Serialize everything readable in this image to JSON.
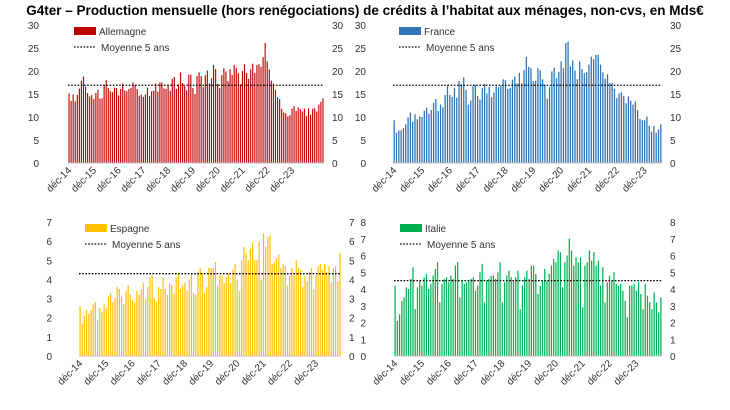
{
  "title": "G4ter – Production mensuelle (hors renégociations) de crédits à l’habitat aux ménages, non-cvs, en Mds€",
  "avg_label": "Moyenne 5 ans",
  "x_tick_labels": [
    "déc-14",
    "déc-15",
    "déc-16",
    "déc-17",
    "déc-18",
    "déc-19",
    "déc-20",
    "déc-21",
    "déc-22",
    "déc-23"
  ],
  "chart_data": [
    {
      "type": "bar",
      "name": "Allemagne",
      "color": "#C00000",
      "y_ticks": [
        0,
        5,
        10,
        15,
        20,
        25,
        30
      ],
      "ylim": [
        0,
        30
      ],
      "avg": 16.9,
      "values": [
        15.1,
        13.5,
        14.9,
        13.4,
        14.8,
        16.2,
        17.9,
        18.8,
        16.6,
        15.2,
        14.5,
        14.8,
        13.9,
        15.2,
        15.9,
        14.0,
        14.1,
        16.9,
        18.0,
        16.3,
        15.6,
        15.4,
        16.4,
        16.3,
        14.7,
        16.1,
        17.3,
        15.8,
        15.6,
        16.1,
        16.3,
        17.5,
        17.0,
        16.1,
        14.6,
        14.9,
        14.4,
        14.9,
        16.4,
        14.6,
        15.6,
        15.7,
        17.3,
        15.5,
        17.5,
        17.5,
        16.2,
        16.1,
        16.9,
        15.7,
        18.3,
        18.7,
        16.1,
        17.1,
        19.7,
        17.4,
        16.7,
        15.8,
        19.2,
        19.2,
        16.3,
        15.0,
        18.9,
        19.7,
        18.9,
        16.5,
        19.1,
        20.1,
        17.3,
        18.4,
        21.3,
        20.4,
        17.2,
        16.3,
        19.1,
        20.6,
        19.9,
        17.8,
        20.4,
        19.1,
        21.3,
        20.7,
        19.5,
        17.1,
        20.0,
        21.5,
        19.6,
        18.3,
        20.4,
        21.6,
        19.6,
        21.3,
        21.5,
        20.9,
        23.0,
        26.1,
        22.1,
        20.3,
        17.9,
        17.3,
        15.9,
        14.3,
        13.9,
        11.8,
        11.0,
        10.8,
        10.1,
        10.4,
        11.8,
        12.4,
        11.3,
        12.1,
        11.7,
        11.2,
        11.8,
        10.2,
        11.9,
        10.5,
        11.8,
        11.9,
        11.2,
        12.7,
        13.3,
        14.1
      ]
    },
    {
      "type": "bar",
      "name": "France",
      "color": "#2E75B6",
      "y_ticks": [
        0,
        5,
        10,
        15,
        20,
        25,
        30
      ],
      "ylim": [
        0,
        30
      ],
      "avg": 16.9,
      "values": [
        9.3,
        6.6,
        7.1,
        7.1,
        7.6,
        8.4,
        9.9,
        11.0,
        9.0,
        10.6,
        9.5,
        10.1,
        10.0,
        11.4,
        12.0,
        10.7,
        11.5,
        13.1,
        13.9,
        11.3,
        12.7,
        12.1,
        14.8,
        16.8,
        14.8,
        14.4,
        16.3,
        14.2,
        17.8,
        17.1,
        18.6,
        15.9,
        12.7,
        13.6,
        16.7,
        17.0,
        14.6,
        13.8,
        16.3,
        17.2,
        15.1,
        16.6,
        14.3,
        15.3,
        16.7,
        16.5,
        16.8,
        18.2,
        18.0,
        16.1,
        16.3,
        18.1,
        18.8,
        17.3,
        19.6,
        17.3,
        20.2,
        23.1,
        20.9,
        20.6,
        17.8,
        17.9,
        20.6,
        20.1,
        18.2,
        17.0,
        14.0,
        16.5,
        19.9,
        20.7,
        18.4,
        19.8,
        22.1,
        20.6,
        26.1,
        26.4,
        21.0,
        22.3,
        20.1,
        18.2,
        22.1,
        20.4,
        19.5,
        19.7,
        21.4,
        23.1,
        22.6,
        23.5,
        23.5,
        21.4,
        19.7,
        18.3,
        19.3,
        17.4,
        17.4,
        16.1,
        14.1,
        15.1,
        15.4,
        14.6,
        13.0,
        14.5,
        13.5,
        12.7,
        13.4,
        11.5,
        9.6,
        9.3,
        9.3,
        10.1,
        8.1,
        6.8,
        8.0,
        6.6,
        7.3,
        8.4
      ]
    },
    {
      "type": "bar",
      "name": "Espagne",
      "color": "#FFC000",
      "y_ticks": [
        0,
        1,
        2,
        3,
        4,
        5,
        6,
        7
      ],
      "ylim": [
        0,
        7
      ],
      "avg": 4.3,
      "values": [
        2.6,
        1.7,
        2.1,
        2.4,
        2.2,
        2.4,
        2.7,
        2.8,
        1.9,
        2.5,
        2.3,
        2.7,
        2.5,
        3.1,
        3.3,
        2.8,
        3.0,
        3.6,
        3.5,
        3.1,
        2.7,
        3.4,
        3.7,
        3.2,
        2.9,
        2.8,
        3.4,
        3.2,
        3.5,
        3.8,
        3.0,
        3.6,
        4.1,
        4.2,
        3.0,
        2.8,
        3.6,
        3.5,
        4.1,
        3.5,
        3.2,
        3.8,
        3.7,
        3.3,
        4.1,
        4.3,
        3.5,
        3.7,
        3.8,
        3.4,
        4.0,
        4.3,
        3.3,
        3.2,
        4.4,
        4.6,
        4.3,
        3.3,
        3.6,
        4.6,
        4.6,
        4.6,
        4.9,
        3.7,
        4.2,
        4.2,
        3.8,
        4.1,
        4.3,
        3.8,
        4.5,
        4.8,
        4.0,
        3.4,
        5.0,
        5.7,
        5.4,
        5.0,
        5.6,
        5.9,
        5.0,
        5.0,
        6.0,
        4.0,
        6.4,
        5.7,
        6.2,
        6.3,
        4.8,
        4.9,
        5.1,
        5.3,
        4.6,
        4.8,
        4.7,
        3.7,
        4.2,
        4.6,
        4.2,
        5.0,
        4.6,
        4.5,
        3.6,
        4.2,
        3.9,
        4.4,
        4.6,
        3.5,
        4.2,
        4.7,
        4.8,
        4.5,
        4.8,
        4.4,
        4.7,
        3.8,
        4.6,
        4.7,
        3.9,
        5.4
      ]
    },
    {
      "type": "bar",
      "name": "Italie",
      "color": "#00B050",
      "y_ticks": [
        0,
        1,
        2,
        3,
        4,
        5,
        6,
        7,
        8
      ],
      "ylim": [
        0,
        8
      ],
      "avg": 4.5,
      "values": [
        4.2,
        2.1,
        2.5,
        3.3,
        3.5,
        4.1,
        4.0,
        4.6,
        5.3,
        2.8,
        4.1,
        4.5,
        4.2,
        4.7,
        4.9,
        4.0,
        4.3,
        4.8,
        5.2,
        5.6,
        3.2,
        4.3,
        4.6,
        4.7,
        4.4,
        4.8,
        4.6,
        5.4,
        5.6,
        3.5,
        4.5,
        4.3,
        4.4,
        4.5,
        4.6,
        4.7,
        3.9,
        4.2,
        5.0,
        5.5,
        3.2,
        4.5,
        4.6,
        4.8,
        4.8,
        4.6,
        5.0,
        5.6,
        3.2,
        4.4,
        4.8,
        5.1,
        4.7,
        4.5,
        4.7,
        5.1,
        2.8,
        4.2,
        4.7,
        5.1,
        4.6,
        5.4,
        5.4,
        4.9,
        3.7,
        4.2,
        4.5,
        5.2,
        4.5,
        4.9,
        5.4,
        5.8,
        5.6,
        6.3,
        6.2,
        4.1,
        5.6,
        6.0,
        7.0,
        6.3,
        5.4,
        5.9,
        5.6,
        5.9,
        2.9,
        5.4,
        5.6,
        6.3,
        5.7,
        6.2,
        5.4,
        5.7,
        4.2,
        5.3,
        3.2,
        4.4,
        4.8,
        4.5,
        5.0,
        4.3,
        4.2,
        4.3,
        3.9,
        3.3,
        2.3,
        4.2,
        4.2,
        4.3,
        3.9,
        4.4,
        3.7,
        2.8,
        4.3,
        3.6,
        3.2,
        2.8,
        3.8,
        3.2,
        2.6,
        3.5
      ]
    }
  ]
}
